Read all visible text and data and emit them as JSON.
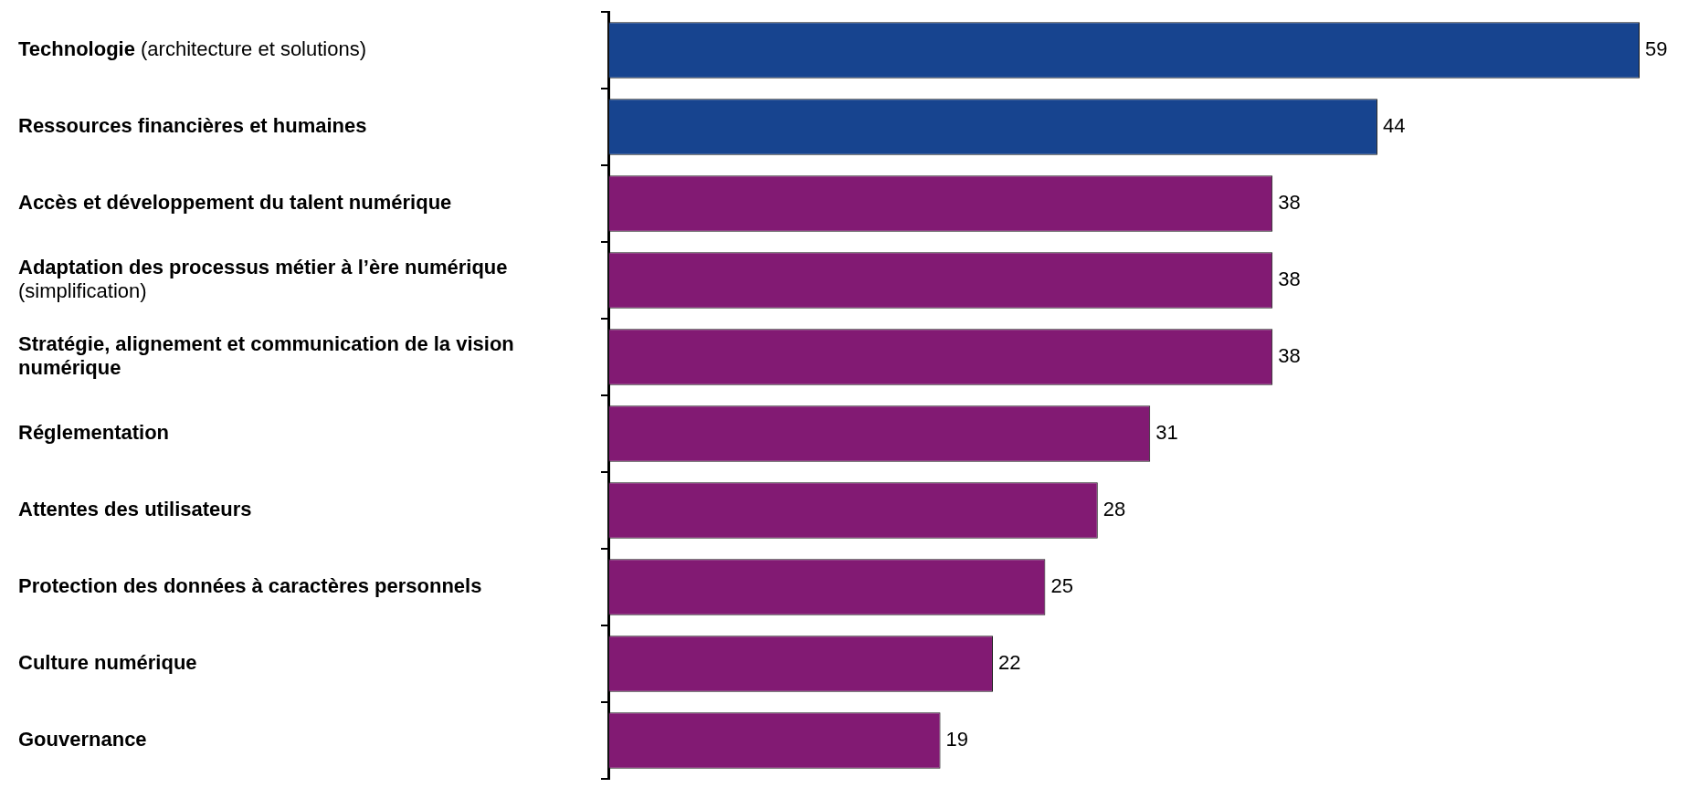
{
  "chart_data": {
    "type": "bar",
    "orientation": "horizontal",
    "categories": [
      "Technologie (architecture et solutions)",
      "Ressources financières et humaines",
      "Accès et développement du talent numérique",
      "Adaptation des processus métier à l’ère numérique (simplification)",
      "Stratégie, alignement et communication de la vision numérique",
      "Réglementation",
      "Attentes des utilisateurs",
      "Protection des données à caractères personnels",
      "Culture numérique",
      "Gouvernance"
    ],
    "values": [
      59,
      44,
      38,
      38,
      38,
      31,
      28,
      25,
      22,
      19
    ],
    "colors": [
      "#17448f",
      "#17448f",
      "#821a73",
      "#821a73",
      "#821a73",
      "#821a73",
      "#821a73",
      "#821a73",
      "#821a73",
      "#821a73"
    ],
    "data_labels": true,
    "grid": false,
    "legend": false
  }
}
